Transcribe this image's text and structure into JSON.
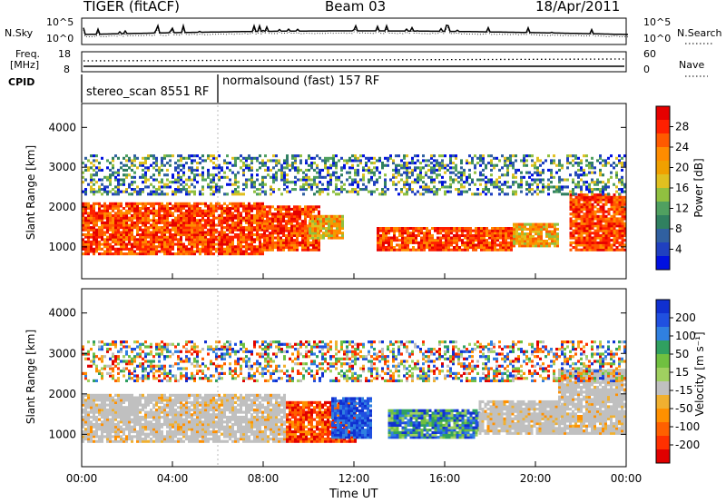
{
  "header": {
    "radar": "TIGER (fitACF)",
    "beam": "Beam 03",
    "date": "18/Apr/2011"
  },
  "top_panels": {
    "nsky_label": "N.Sky",
    "nsearch_label": "N.Search",
    "nsky_ticks": [
      "10^5",
      "10^0"
    ],
    "nsearch_ticks": [
      "10^5",
      "10^0"
    ],
    "freq_label": "Freq.",
    "freq_unit": "[MHz]",
    "freq_ticks": [
      "18",
      "8"
    ],
    "nave_label": "Nave",
    "nave_ticks": [
      "60",
      "0"
    ],
    "cpid_label": "CPID",
    "cpid_segments": [
      {
        "label": "stereo_scan 8551 RF",
        "start_hour": 0
      },
      {
        "label": "normalsound (fast) 157 RF",
        "start_hour": 6
      }
    ]
  },
  "chart_data": [
    {
      "type": "heatmap",
      "name": "power",
      "xlabel": "",
      "ylabel": "Slant Range [km]",
      "ylim": [
        200,
        4600
      ],
      "y_ticks": [
        "4000",
        "3000",
        "2000",
        "1000"
      ],
      "colorbar_label": "Power [dB]",
      "colorbar_ticks": [
        "28",
        "24",
        "20",
        "16",
        "12",
        "8",
        "4"
      ],
      "colors": [
        "#e60000",
        "#ff2000",
        "#ff5a00",
        "#ff8c00",
        "#f0a000",
        "#e0c020",
        "#90c040",
        "#50a060",
        "#308060",
        "#3060a0",
        "#2040c0",
        "#0010e0"
      ],
      "echo_regions": [
        {
          "t0": 0,
          "t1": 8,
          "r0": 800,
          "r1": 2100,
          "level": "high"
        },
        {
          "t0": 8,
          "t1": 10.5,
          "r0": 900,
          "r1": 2000,
          "level": "high"
        },
        {
          "t0": 10,
          "t1": 11.5,
          "r0": 1200,
          "r1": 1800,
          "level": "mid"
        },
        {
          "t0": 13,
          "t1": 19,
          "r0": 900,
          "r1": 1500,
          "level": "high"
        },
        {
          "t0": 19,
          "t1": 21,
          "r0": 1000,
          "r1": 1600,
          "level": "mid"
        },
        {
          "t0": 21.5,
          "t1": 24,
          "r0": 900,
          "r1": 2300,
          "level": "high"
        },
        {
          "t0": 0,
          "t1": 24,
          "r0": 2300,
          "r1": 3300,
          "level": "low"
        }
      ]
    },
    {
      "type": "heatmap",
      "name": "velocity",
      "xlabel": "Time UT",
      "ylabel": "Slant Range [km]",
      "ylim": [
        200,
        4600
      ],
      "y_ticks": [
        "4000",
        "3000",
        "2000",
        "1000"
      ],
      "x_ticks": [
        "00:00",
        "04:00",
        "08:00",
        "12:00",
        "16:00",
        "20:00",
        "00:00"
      ],
      "colorbar_label": "Velocity [m s⁻¹]",
      "colorbar_ticks": [
        "200",
        "100",
        "50",
        "15",
        "-15",
        "-50",
        "-100",
        "-200"
      ],
      "colors": [
        "#1030d0",
        "#2050e0",
        "#3080e0",
        "#30a060",
        "#70c040",
        "#a0d060",
        "#c0c0c0",
        "#f0b030",
        "#ff9000",
        "#ff6000",
        "#ff3000",
        "#e00000"
      ],
      "echo_regions": [
        {
          "t0": 0,
          "t1": 9,
          "r0": 800,
          "r1": 2000,
          "level": "ground"
        },
        {
          "t0": 9,
          "t1": 12,
          "r0": 800,
          "r1": 1800,
          "level": "neg"
        },
        {
          "t0": 11,
          "t1": 12.7,
          "r0": 900,
          "r1": 1900,
          "level": "pos"
        },
        {
          "t0": 13.5,
          "t1": 17.5,
          "r0": 900,
          "r1": 1600,
          "level": "mix"
        },
        {
          "t0": 17.5,
          "t1": 21,
          "r0": 1000,
          "r1": 1800,
          "level": "ground"
        },
        {
          "t0": 21,
          "t1": 24,
          "r0": 1000,
          "r1": 2600,
          "level": "ground"
        },
        {
          "t0": 0,
          "t1": 24,
          "r0": 2300,
          "r1": 3300,
          "level": "sparse"
        }
      ]
    }
  ]
}
